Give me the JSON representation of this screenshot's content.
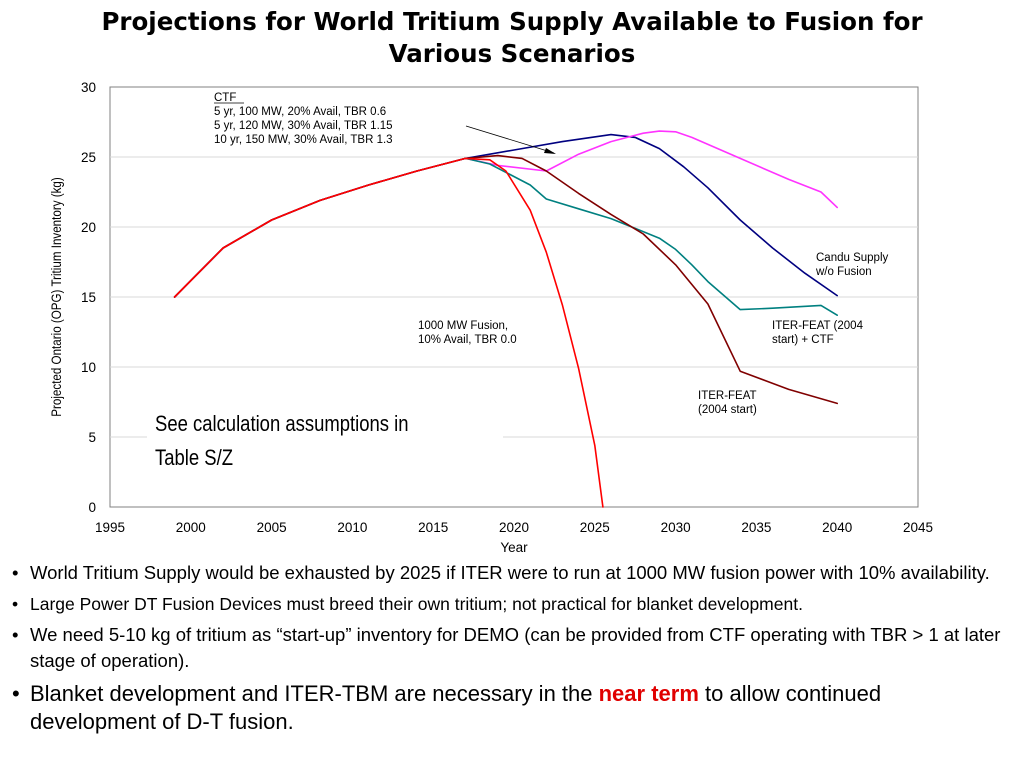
{
  "slide": {
    "title_line1": "Projections for World Tritium Supply Available to Fusion for",
    "title_line2": "Various Scenarios"
  },
  "chart_data": {
    "type": "line",
    "xlabel": "Year",
    "ylabel": "Projected Ontario (OPG) Tritium Inventory (kg)",
    "xlim": [
      1995,
      2045
    ],
    "ylim": [
      0,
      30
    ],
    "xticks": [
      1995,
      2000,
      2005,
      2010,
      2015,
      2020,
      2025,
      2030,
      2035,
      2040,
      2045
    ],
    "yticks": [
      0,
      5,
      10,
      15,
      20,
      25,
      30
    ],
    "grid": "horizontal",
    "series": [
      {
        "name": "Candu Supply w/o Fusion",
        "color": "#000080",
        "x": [
          1999,
          2002,
          2005,
          2008,
          2011,
          2014,
          2017,
          2020,
          2023,
          2026,
          2027.5,
          2029,
          2030.5,
          2032,
          2034,
          2036,
          2038,
          2040
        ],
        "y": [
          15.0,
          18.5,
          20.5,
          21.9,
          23.0,
          24.0,
          24.9,
          25.5,
          26.1,
          26.6,
          26.4,
          25.6,
          24.3,
          22.8,
          20.5,
          18.5,
          16.7,
          15.1
        ]
      },
      {
        "name": "CTF",
        "color": "#ff33ff",
        "x": [
          1999,
          2002,
          2005,
          2008,
          2011,
          2014,
          2017,
          2019,
          2022,
          2024,
          2026,
          2028,
          2029,
          2030,
          2031,
          2034,
          2037,
          2039,
          2040
        ],
        "y": [
          15.0,
          18.5,
          20.5,
          21.9,
          23.0,
          24.0,
          24.9,
          24.4,
          24.0,
          25.2,
          26.1,
          26.7,
          26.85,
          26.8,
          26.4,
          24.9,
          23.4,
          22.5,
          21.4
        ]
      },
      {
        "name": "ITER-FEAT (2004 start) + CTF",
        "color": "#008080",
        "x": [
          1999,
          2002,
          2005,
          2008,
          2011,
          2014,
          2017,
          2018.5,
          2021,
          2022,
          2024,
          2026,
          2027.5,
          2029,
          2030,
          2031,
          2032,
          2034,
          2036,
          2039,
          2040
        ],
        "y": [
          15.0,
          18.5,
          20.5,
          21.9,
          23.0,
          24.0,
          24.9,
          24.5,
          23.0,
          22.0,
          21.3,
          20.6,
          19.9,
          19.2,
          18.4,
          17.3,
          16.1,
          14.1,
          14.2,
          14.4,
          13.7
        ]
      },
      {
        "name": "ITER-FEAT (2004 start)",
        "color": "#800000",
        "x": [
          1999,
          2002,
          2005,
          2008,
          2011,
          2014,
          2017,
          2019,
          2020.5,
          2022,
          2024,
          2026,
          2028,
          2030,
          2032,
          2034,
          2037,
          2040
        ],
        "y": [
          15.0,
          18.5,
          20.5,
          21.9,
          23.0,
          24.0,
          24.9,
          25.1,
          24.9,
          24.0,
          22.4,
          20.9,
          19.5,
          17.3,
          14.5,
          9.7,
          8.4,
          7.4
        ]
      },
      {
        "name": "1000 MW Fusion, 10% Avail, TBR 0.0",
        "color": "#ff0000",
        "x": [
          1999,
          2002,
          2005,
          2008,
          2011,
          2014,
          2017,
          2018.5,
          2019.5,
          2021,
          2022,
          2023,
          2024,
          2025,
          2025.5
        ],
        "y": [
          15.0,
          18.5,
          20.5,
          21.9,
          23.0,
          24.0,
          24.9,
          24.8,
          24.0,
          21.2,
          18.2,
          14.4,
          9.9,
          4.4,
          0
        ]
      }
    ],
    "annotations": {
      "ctf_header": "CTF",
      "ctf_line1": "5 yr, 100 MW, 20% Avail, TBR 0.6",
      "ctf_line2": "5 yr, 120 MW, 30% Avail, TBR 1.15",
      "ctf_line3": "10 yr, 150 MW, 30% Avail, TBR 1.3",
      "candu_line1": "Candu Supply",
      "candu_line2": "w/o Fusion",
      "fusion_line1": "1000 MW Fusion,",
      "fusion_line2": "10% Avail, TBR 0.0",
      "ctfplus_line1": "ITER-FEAT (2004",
      "ctfplus_line2": "start) + CTF",
      "iter_line1": "ITER-FEAT",
      "iter_line2": "(2004 start)",
      "assump_line1": "See calculation assumptions in",
      "assump_line2": "Table S/Z"
    }
  },
  "bullets": {
    "b1": "World Tritium Supply would be exhausted by 2025 if ITER were to run at 1000 MW fusion power with 10% availability.",
    "b2": "Large Power DT Fusion Devices must breed their own tritium; not practical for blanket development.",
    "b3": "We need 5-10 kg of tritium as “start-up” inventory for DEMO (can be provided from CTF operating with TBR > 1 at later stage of operation).",
    "b4_pre": "Blanket development and ITER-TBM are necessary in the ",
    "b4_highlight": "near term",
    "b4_post": " to allow continued development of D-T fusion.",
    "bullet_char": "•"
  }
}
